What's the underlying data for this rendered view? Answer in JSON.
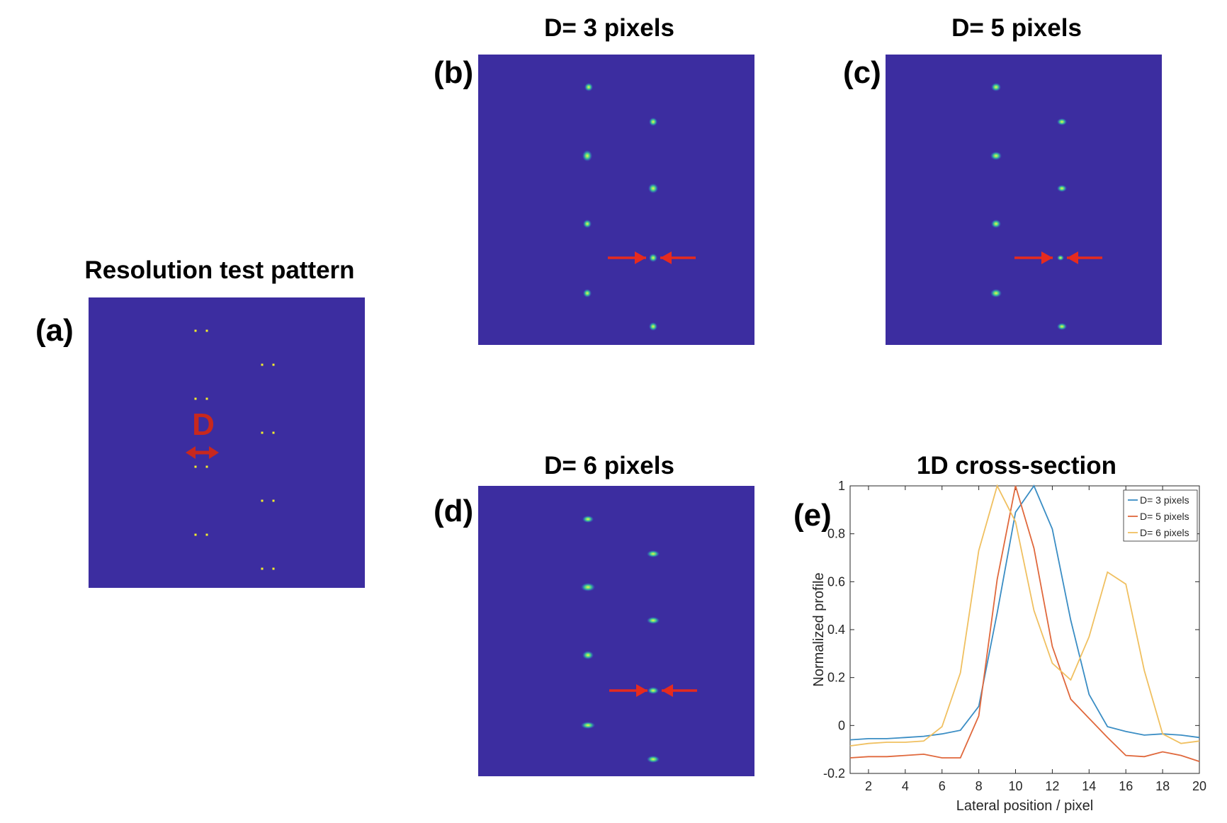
{
  "panels": {
    "a": {
      "label": "(a)",
      "title": "Resolution test pattern",
      "d_marker": "D"
    },
    "b": {
      "label": "(b)",
      "title": "D= 3 pixels"
    },
    "c": {
      "label": "(c)",
      "title": "D= 5 pixels"
    },
    "d": {
      "label": "(d)",
      "title": "D= 6 pixels"
    },
    "e": {
      "label": "(e)",
      "title": "1D cross-section"
    }
  },
  "colors": {
    "background": "#3c2da0",
    "dot": "#f5f02a",
    "arrow": "#e62b1e",
    "marker": "#c8281e",
    "series": [
      "#3a8dc4",
      "#e0683c",
      "#f0c060"
    ]
  },
  "chart_data": {
    "type": "line",
    "title": "1D cross-section",
    "xlabel": "Lateral position / pixel",
    "ylabel": "Normalized profile",
    "xlim": [
      1,
      20
    ],
    "ylim": [
      -0.2,
      1
    ],
    "xticks": [
      2,
      4,
      6,
      8,
      10,
      12,
      14,
      16,
      18,
      20
    ],
    "yticks": [
      -0.2,
      0,
      0.2,
      0.4,
      0.6,
      0.8,
      1
    ],
    "ytick_labels": [
      "-0.2",
      "0",
      "0.2",
      "0.4",
      "0.6",
      "0.8",
      "1"
    ],
    "legend_position": "top-right",
    "x": [
      1,
      2,
      3,
      4,
      5,
      6,
      7,
      8,
      9,
      10,
      11,
      12,
      13,
      14,
      15,
      16,
      17,
      18,
      19,
      20
    ],
    "series": [
      {
        "name": "D= 3 pixels",
        "values": [
          -0.06,
          -0.055,
          -0.055,
          -0.05,
          -0.045,
          -0.035,
          -0.02,
          0.08,
          0.47,
          0.89,
          1.0,
          0.82,
          0.44,
          0.13,
          -0.005,
          -0.025,
          -0.04,
          -0.035,
          -0.04,
          -0.05
        ]
      },
      {
        "name": "D= 5 pixels",
        "values": [
          -0.135,
          -0.13,
          -0.13,
          -0.125,
          -0.12,
          -0.135,
          -0.135,
          0.04,
          0.61,
          1.0,
          0.74,
          0.33,
          0.11,
          0.03,
          -0.05,
          -0.125,
          -0.13,
          -0.11,
          -0.125,
          -0.15
        ]
      },
      {
        "name": "D= 6 pixels",
        "values": [
          -0.085,
          -0.075,
          -0.07,
          -0.07,
          -0.065,
          -0.005,
          0.22,
          0.73,
          1.0,
          0.85,
          0.48,
          0.26,
          0.19,
          0.37,
          0.64,
          0.59,
          0.23,
          -0.035,
          -0.075,
          -0.065
        ]
      }
    ]
  }
}
